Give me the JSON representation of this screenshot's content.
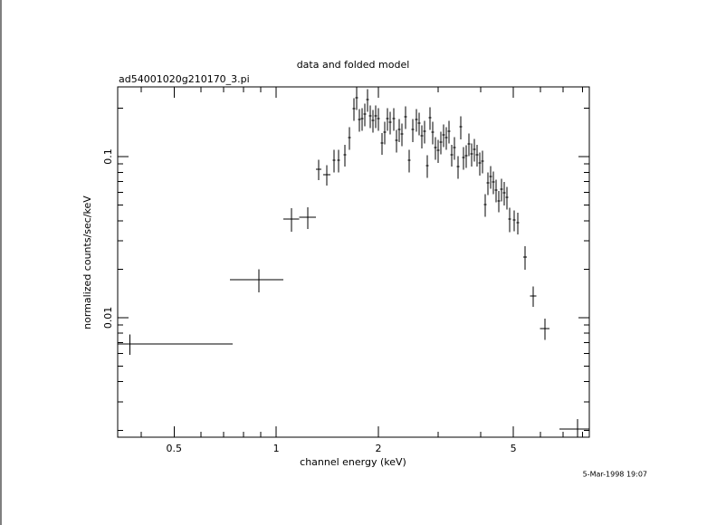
{
  "chart_data": {
    "type": "scatter",
    "title": "data and folded model",
    "subtitle": "ad54001020g210170_3.pi",
    "xlabel": "channel energy (keV)",
    "ylabel": "normalized counts/sec/keV",
    "annotation": "5-Mar-1998 19:07",
    "xscale": "log",
    "yscale": "log",
    "color": "#000000",
    "xlim": [
      0.341,
      8.37
    ],
    "ylim": [
      0.00181,
      0.271
    ],
    "xticks": [
      0.5,
      1,
      2,
      5
    ],
    "yticks": [
      0.01,
      0.1
    ],
    "x": [
      0.37,
      0.89,
      1.11,
      1.24,
      1.335,
      1.41,
      1.482,
      1.528,
      1.595,
      1.644,
      1.696,
      1.727,
      1.759,
      1.792,
      1.825,
      1.859,
      1.894,
      1.929,
      1.965,
      2.001,
      2.051,
      2.089,
      2.128,
      2.168,
      2.222,
      2.263,
      2.306,
      2.349,
      2.407,
      2.466,
      2.527,
      2.59,
      2.638,
      2.688,
      2.737,
      2.789,
      2.841,
      2.893,
      2.947,
      3.002,
      3.058,
      3.114,
      3.172,
      3.231,
      3.291,
      3.353,
      3.436,
      3.499,
      3.565,
      3.631,
      3.698,
      3.767,
      3.837,
      3.908,
      3.981,
      4.055,
      4.13,
      4.207,
      4.285,
      4.365,
      4.446,
      4.529,
      4.613,
      4.699,
      4.786,
      4.875,
      5.027,
      5.152,
      5.411,
      5.718,
      6.194,
      7.727
    ],
    "xerr": [
      0.375,
      0.16,
      0.06,
      0.07,
      0.025,
      0.035,
      0.013,
      0.014,
      0.014,
      0.015,
      0.015,
      0.016,
      0.016,
      0.016,
      0.016,
      0.017,
      0.017,
      0.017,
      0.018,
      0.018,
      0.018,
      0.019,
      0.019,
      0.02,
      0.02,
      0.02,
      0.021,
      0.021,
      0.022,
      0.022,
      0.023,
      0.023,
      0.024,
      0.024,
      0.025,
      0.025,
      0.026,
      0.026,
      0.027,
      0.027,
      0.028,
      0.028,
      0.029,
      0.029,
      0.03,
      0.03,
      0.031,
      0.031,
      0.032,
      0.033,
      0.033,
      0.034,
      0.035,
      0.035,
      0.036,
      0.036,
      0.037,
      0.038,
      0.039,
      0.039,
      0.04,
      0.041,
      0.042,
      0.042,
      0.043,
      0.044,
      0.045,
      0.046,
      0.06,
      0.12,
      0.2,
      0.9
    ],
    "values": [
      0.00687,
      0.0172,
      0.0409,
      0.042,
      0.0834,
      0.0772,
      0.095,
      0.095,
      0.1026,
      0.1312,
      0.1985,
      0.2318,
      0.1699,
      0.1722,
      0.1837,
      0.2259,
      0.179,
      0.1677,
      0.179,
      0.1722,
      0.1214,
      0.1418,
      0.1722,
      0.1634,
      0.1722,
      0.1262,
      0.1474,
      0.1381,
      0.1767,
      0.095,
      0.1474,
      0.1699,
      0.1614,
      0.1346,
      0.1437,
      0.0879,
      0.1744,
      0.1418,
      0.1138,
      0.1095,
      0.123,
      0.1364,
      0.1312,
      0.1437,
      0.1026,
      0.1138,
      0.0868,
      0.1532,
      0.0987,
      0.1013,
      0.1199,
      0.104,
      0.1109,
      0.1026,
      0.0913,
      0.0937,
      0.0504,
      0.0687,
      0.0752,
      0.0696,
      0.062,
      0.053,
      0.0628,
      0.0596,
      0.0559,
      0.041,
      0.0404,
      0.0389,
      0.0238,
      0.01364,
      0.00857,
      0.00204
    ],
    "yerr": [
      0.001,
      0.0028,
      0.0068,
      0.0065,
      0.012,
      0.011,
      0.015,
      0.015,
      0.016,
      0.021,
      0.032,
      0.037,
      0.027,
      0.028,
      0.029,
      0.036,
      0.029,
      0.027,
      0.029,
      0.028,
      0.019,
      0.023,
      0.028,
      0.026,
      0.028,
      0.02,
      0.024,
      0.022,
      0.028,
      0.015,
      0.024,
      0.027,
      0.026,
      0.022,
      0.023,
      0.014,
      0.028,
      0.023,
      0.018,
      0.018,
      0.02,
      0.022,
      0.021,
      0.023,
      0.016,
      0.018,
      0.014,
      0.025,
      0.016,
      0.016,
      0.019,
      0.017,
      0.018,
      0.016,
      0.015,
      0.015,
      0.008,
      0.011,
      0.012,
      0.011,
      0.01,
      0.008,
      0.01,
      0.01,
      0.009,
      0.007,
      0.006,
      0.006,
      0.004,
      0.002,
      0.0013,
      0.0003
    ]
  }
}
